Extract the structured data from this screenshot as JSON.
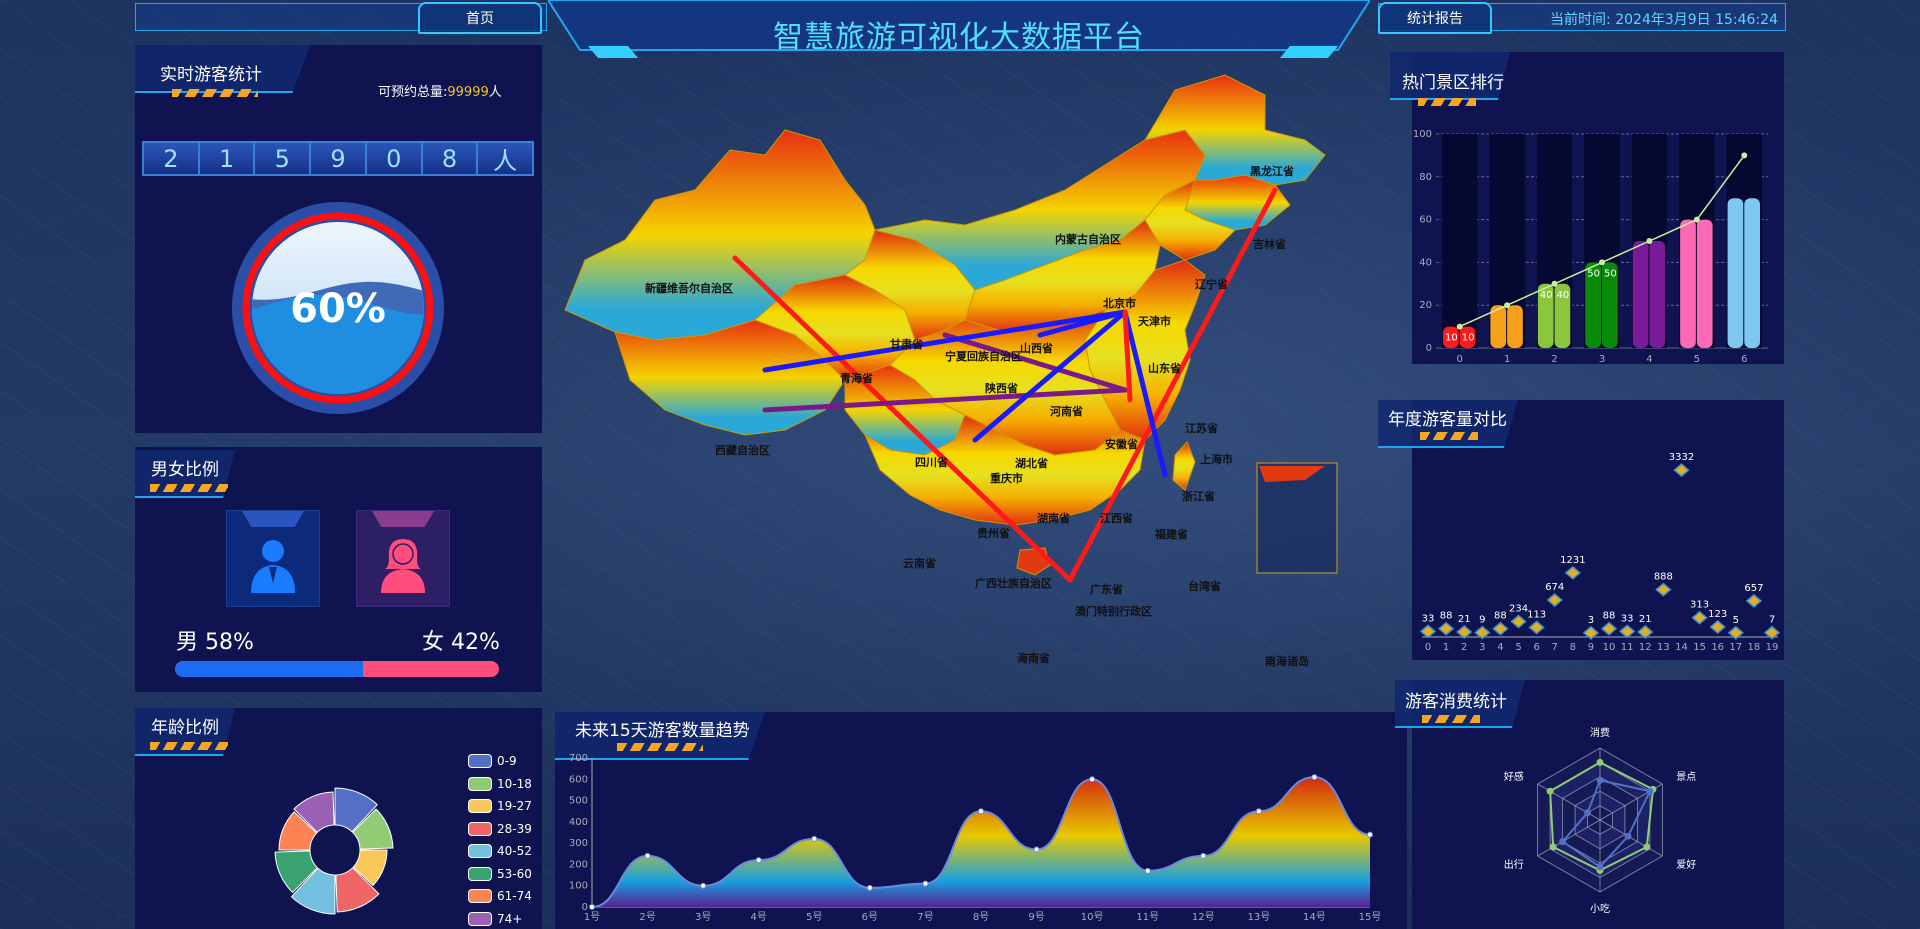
{
  "header": {
    "title": "智慧旅游可视化大数据平台",
    "home_tab": "首页",
    "report_tab": "统计报告",
    "time_label": "当前时间:",
    "time_value": "2024年3月9日 15:46:24"
  },
  "realtime": {
    "title": "实时游客统计",
    "total_label": "可预约总量:",
    "total_value": "99999",
    "total_unit": "人",
    "digits": [
      "2",
      "1",
      "5",
      "9",
      "0",
      "8",
      "人"
    ],
    "gauge_percent": 60,
    "gauge_text": "60%"
  },
  "gender": {
    "title": "男女比例",
    "male_label": "男 58%",
    "female_label": "女 42%",
    "male_fraction": 0.58,
    "male_color": "#1a6cf0",
    "female_color": "#ff4d7d"
  },
  "age": {
    "title": "年龄比例",
    "legend": [
      {
        "label": "0-9",
        "color": "#5470c6"
      },
      {
        "label": "10-18",
        "color": "#91cc75"
      },
      {
        "label": "19-27",
        "color": "#fac858"
      },
      {
        "label": "28-39",
        "color": "#ee6666"
      },
      {
        "label": "40-52",
        "color": "#73c0de"
      },
      {
        "label": "53-60",
        "color": "#3ba272"
      },
      {
        "label": "61-74",
        "color": "#fc8452"
      },
      {
        "label": "74+",
        "color": "#9a60b4"
      }
    ]
  },
  "map": {
    "provinces": [
      {
        "name": "新疆维吾尔自治区"
      },
      {
        "name": "内蒙古自治区"
      },
      {
        "name": "黑龙江省"
      },
      {
        "name": "吉林省"
      },
      {
        "name": "辽宁省"
      },
      {
        "name": "北京市"
      },
      {
        "name": "天津市"
      },
      {
        "name": "甘肃省"
      },
      {
        "name": "宁夏回族自治区"
      },
      {
        "name": "山西省"
      },
      {
        "name": "山东省"
      },
      {
        "name": "青海省"
      },
      {
        "name": "陕西省"
      },
      {
        "name": "河南省"
      },
      {
        "name": "江苏省"
      },
      {
        "name": "西藏自治区"
      },
      {
        "name": "四川省"
      },
      {
        "name": "湖北省"
      },
      {
        "name": "安徽省"
      },
      {
        "name": "上海市"
      },
      {
        "name": "重庆市"
      },
      {
        "name": "浙江省"
      },
      {
        "name": "湖南省"
      },
      {
        "name": "江西省"
      },
      {
        "name": "贵州省"
      },
      {
        "name": "福建省"
      },
      {
        "name": "云南省"
      },
      {
        "name": "广西壮族自治区"
      },
      {
        "name": "广东省"
      },
      {
        "name": "台湾省"
      },
      {
        "name": "澳门特别行政区"
      },
      {
        "name": "海南省"
      },
      {
        "name": "南海诸岛"
      }
    ]
  },
  "hot_spots": {
    "title": "热门景区排行",
    "chart_data": {
      "type": "bar",
      "categories": [
        "0",
        "1",
        "2",
        "3",
        "4",
        "5",
        "6"
      ],
      "series": [
        {
          "values": [
            10,
            20,
            30,
            40,
            50,
            60,
            70
          ]
        },
        {
          "values": [
            10,
            20,
            30,
            40,
            50,
            60,
            70
          ]
        }
      ],
      "colors": [
        "#ff1a1a",
        "#f7a11a",
        "#8cc63f",
        "#0a8a0a",
        "#7a1a9a",
        "#ff69b4",
        "#7ec8f0"
      ],
      "line": [
        10,
        20,
        30,
        40,
        50,
        60,
        90
      ],
      "ylim": [
        0,
        100
      ],
      "yticks": [
        0,
        20,
        40,
        60,
        80,
        100
      ],
      "labels": [
        10,
        10,
        null,
        null,
        40,
        40,
        50,
        50,
        null,
        null,
        null,
        null,
        null,
        null
      ]
    }
  },
  "annual": {
    "title": "年度游客量对比",
    "chart_data": {
      "type": "scatter",
      "x": [
        "0",
        "1",
        "2",
        "3",
        "4",
        "5",
        "6",
        "7",
        "8",
        "9",
        "10",
        "11",
        "12",
        "13",
        "14",
        "15",
        "16",
        "17",
        "18",
        "19"
      ],
      "values": [
        33,
        88,
        21,
        9,
        88,
        234,
        113,
        674,
        1231,
        3,
        88,
        33,
        21,
        888,
        3332,
        313,
        123,
        5,
        657,
        7
      ],
      "ylim": [
        0,
        3600
      ]
    }
  },
  "forecast": {
    "title": "未来15天游客数量趋势",
    "chart_data": {
      "type": "area",
      "x": [
        "1号",
        "2号",
        "3号",
        "4号",
        "5号",
        "6号",
        "7号",
        "8号",
        "9号",
        "10号",
        "11号",
        "12号",
        "13号",
        "14号",
        "15号"
      ],
      "values": [
        0,
        240,
        100,
        220,
        320,
        90,
        110,
        450,
        270,
        600,
        170,
        240,
        450,
        610,
        340
      ],
      "ylim": [
        0,
        700
      ],
      "yticks": [
        0,
        100,
        200,
        300,
        400,
        500,
        600,
        700
      ]
    }
  },
  "consumption": {
    "title": "游客消费统计",
    "chart_data": {
      "type": "radar",
      "indicators": [
        "消费",
        "景点",
        "爱好",
        "小吃",
        "出行",
        "好感"
      ],
      "series": [
        {
          "values": [
            80,
            85,
            75,
            70,
            75,
            80
          ],
          "color": "#91cc75"
        },
        {
          "values": [
            55,
            80,
            45,
            65,
            60,
            20
          ],
          "color": "#5470c6"
        }
      ],
      "max": 100
    }
  }
}
